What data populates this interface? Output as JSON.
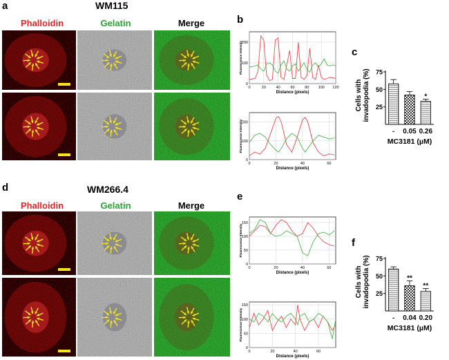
{
  "panel_letters": {
    "a": "a",
    "b": "b",
    "c": "c",
    "d": "d",
    "e": "e",
    "f": "f"
  },
  "cell_lines": {
    "top": "WM115",
    "bottom": "WM266.4"
  },
  "column_headers": {
    "phalloidin": "Phalloidin",
    "gelatin": "Gelatin",
    "merge": "Merge"
  },
  "colors": {
    "phalloidin": "#e8242a",
    "gelatin": "#2aa335",
    "red_trace": "#e8474d",
    "green_trace": "#4fb54f",
    "arrow": "#f2e61a",
    "scale_bar": "#f2e61a"
  },
  "chart_data": [
    {
      "id": "b-top",
      "type": "line",
      "xlabel": "Distance (pixels)",
      "ylabel": "Fluorescence Intensity",
      "xlim": [
        0,
        120
      ],
      "ylim": [
        0,
        250
      ],
      "xticks": [
        0,
        20,
        40,
        60,
        80,
        100,
        120
      ],
      "yticks": [
        0,
        100,
        200
      ],
      "grid": true,
      "series": [
        {
          "color": "red",
          "x": [
            0,
            8,
            12,
            16,
            20,
            24,
            28,
            32,
            36,
            40,
            44,
            48,
            52,
            56,
            60,
            64,
            68,
            72,
            76,
            80,
            84,
            88,
            92,
            96,
            100,
            104,
            108,
            112,
            116,
            120
          ],
          "y": [
            20,
            25,
            60,
            230,
            210,
            40,
            15,
            20,
            210,
            220,
            30,
            20,
            90,
            160,
            25,
            25,
            200,
            30,
            20,
            40,
            170,
            30,
            20,
            90,
            30,
            20,
            25,
            30,
            28,
            25
          ]
        },
        {
          "color": "green",
          "x": [
            0,
            8,
            12,
            16,
            20,
            24,
            28,
            32,
            36,
            40,
            44,
            48,
            52,
            56,
            60,
            64,
            68,
            72,
            76,
            80,
            84,
            88,
            92,
            96,
            100,
            104,
            108,
            112,
            116,
            120
          ],
          "y": [
            80,
            85,
            90,
            70,
            60,
            95,
            100,
            90,
            60,
            50,
            90,
            110,
            70,
            60,
            85,
            95,
            60,
            80,
            100,
            70,
            55,
            90,
            100,
            80,
            95,
            120,
            90,
            85,
            90,
            85
          ]
        }
      ]
    },
    {
      "id": "b-bottom",
      "type": "line",
      "xlabel": "Distance (pixels)",
      "ylabel": "Fluorescence Intensity",
      "xlim": [
        0,
        65
      ],
      "ylim": [
        0,
        250
      ],
      "xticks": [
        0,
        20,
        40,
        60
      ],
      "yticks": [
        0,
        100,
        200
      ],
      "grid": true,
      "series": [
        {
          "color": "red",
          "x": [
            0,
            4,
            8,
            12,
            16,
            20,
            22,
            24,
            28,
            32,
            36,
            40,
            42,
            44,
            48,
            52,
            56,
            60,
            64
          ],
          "y": [
            20,
            40,
            30,
            60,
            140,
            220,
            230,
            200,
            80,
            40,
            120,
            210,
            225,
            200,
            90,
            40,
            20,
            30,
            25
          ]
        },
        {
          "color": "green",
          "x": [
            0,
            4,
            8,
            12,
            16,
            20,
            22,
            24,
            28,
            32,
            36,
            40,
            42,
            44,
            48,
            52,
            56,
            60,
            64
          ],
          "y": [
            90,
            130,
            140,
            120,
            80,
            50,
            40,
            60,
            110,
            140,
            120,
            60,
            40,
            60,
            100,
            130,
            120,
            110,
            115
          ]
        }
      ]
    },
    {
      "id": "c",
      "type": "bar",
      "ylabel": "Cells with invadopodia (%)",
      "xlabel": "MC3181 (µM)",
      "categories": [
        "-",
        "0.05",
        "0.26"
      ],
      "values": [
        58,
        42,
        33
      ],
      "errors": [
        6,
        5,
        3
      ],
      "significance": [
        "",
        "",
        "*"
      ],
      "ylim": [
        0,
        75
      ],
      "yticks": [
        25,
        50,
        75
      ]
    },
    {
      "id": "e-top",
      "type": "line",
      "xlabel": "Distance (pixels)",
      "ylabel": "Fluorescence Intensity",
      "xlim": [
        0,
        65
      ],
      "ylim": [
        0,
        170
      ],
      "xticks": [
        0,
        20,
        40,
        60
      ],
      "yticks": [
        0,
        50,
        100,
        150
      ],
      "grid": true,
      "series": [
        {
          "color": "red",
          "x": [
            0,
            4,
            8,
            12,
            16,
            20,
            24,
            28,
            32,
            36,
            40,
            44,
            48,
            52,
            56,
            60,
            64
          ],
          "y": [
            100,
            120,
            140,
            135,
            110,
            140,
            160,
            150,
            120,
            100,
            110,
            150,
            130,
            100,
            80,
            70,
            65
          ]
        },
        {
          "color": "green",
          "x": [
            0,
            4,
            8,
            12,
            16,
            20,
            24,
            28,
            32,
            36,
            40,
            44,
            48,
            52,
            56,
            60,
            64
          ],
          "y": [
            110,
            125,
            160,
            150,
            110,
            100,
            105,
            120,
            110,
            100,
            40,
            30,
            80,
            110,
            115,
            105,
            120
          ]
        }
      ]
    },
    {
      "id": "e-bottom",
      "type": "line",
      "xlabel": "Distance (pixels)",
      "ylabel": "Fluorescence Intensity",
      "xlim": [
        0,
        75
      ],
      "ylim": [
        0,
        160
      ],
      "xticks": [
        0,
        20,
        40,
        60
      ],
      "yticks": [
        0,
        50,
        100,
        150
      ],
      "grid": true,
      "series": [
        {
          "color": "red",
          "x": [
            0,
            4,
            8,
            12,
            16,
            20,
            24,
            28,
            32,
            36,
            40,
            42,
            44,
            48,
            52,
            56,
            60,
            64,
            68,
            72,
            75
          ],
          "y": [
            70,
            120,
            80,
            100,
            130,
            60,
            90,
            110,
            70,
            100,
            80,
            150,
            100,
            60,
            90,
            100,
            70,
            110,
            90,
            60,
            80
          ]
        },
        {
          "color": "green",
          "x": [
            0,
            4,
            8,
            12,
            16,
            20,
            24,
            28,
            32,
            36,
            40,
            42,
            44,
            48,
            52,
            56,
            60,
            64,
            68,
            72,
            75
          ],
          "y": [
            100,
            90,
            120,
            110,
            90,
            120,
            100,
            90,
            110,
            120,
            100,
            80,
            110,
            120,
            90,
            100,
            120,
            110,
            90,
            30,
            100
          ]
        }
      ]
    },
    {
      "id": "f",
      "type": "bar",
      "ylabel": "Cells with invadopodia (%)",
      "xlabel": "MC3181 (µM)",
      "categories": [
        "-",
        "0.04",
        "0.20"
      ],
      "values": [
        60,
        36,
        28
      ],
      "errors": [
        3,
        7,
        4
      ],
      "significance": [
        "",
        "**",
        "**"
      ],
      "ylim": [
        0,
        75
      ],
      "yticks": [
        25,
        50,
        75
      ]
    }
  ]
}
